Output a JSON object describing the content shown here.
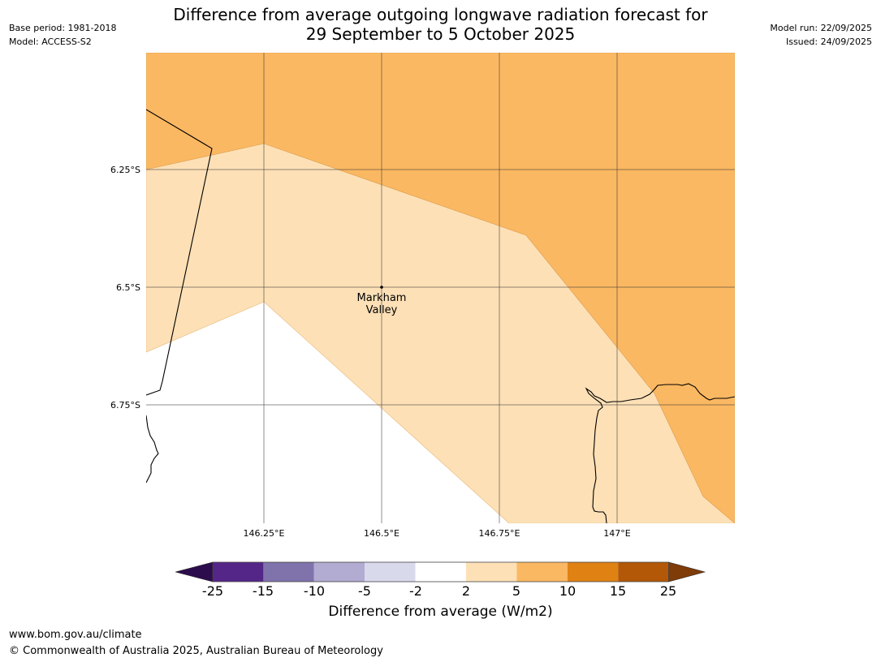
{
  "header": {
    "base_period": "Base period: 1981-2018",
    "model": "Model: ACCESS-S2",
    "model_run": "Model run: 22/09/2025",
    "issued": "Issued: 24/09/2025"
  },
  "title": {
    "line1": "Difference from average outgoing longwave radiation forecast for",
    "line2": "29 September to 5 October 2025"
  },
  "map": {
    "lat_labels": [
      "6.25°S",
      "6.5°S",
      "6.75°S"
    ],
    "lon_labels": [
      "146.25°E",
      "146.5°E",
      "146.75°E",
      "147°E"
    ],
    "place": {
      "name_line1": "Markham",
      "name_line2": "Valley"
    },
    "colors": {
      "band_2_5": "#fde0b6",
      "band_5_10": "#fbb862",
      "background": "#ffffff"
    }
  },
  "colorbar": {
    "title": "Difference from average (W/m2)",
    "ticks": [
      "-25",
      "-15",
      "-10",
      "-5",
      "-2",
      "2",
      "5",
      "10",
      "15",
      "25"
    ],
    "colors": [
      "#2d0c4d",
      "#542688",
      "#8073ac",
      "#b2abd2",
      "#d8daeb",
      "#ffffff",
      "#fde0b6",
      "#fbb862",
      "#e08213",
      "#b35806",
      "#7f3b08"
    ]
  },
  "footer": {
    "url": "www.bom.gov.au/climate",
    "copyright": "© Commonwealth of Australia 2025, Australian Bureau of Meteorology"
  }
}
